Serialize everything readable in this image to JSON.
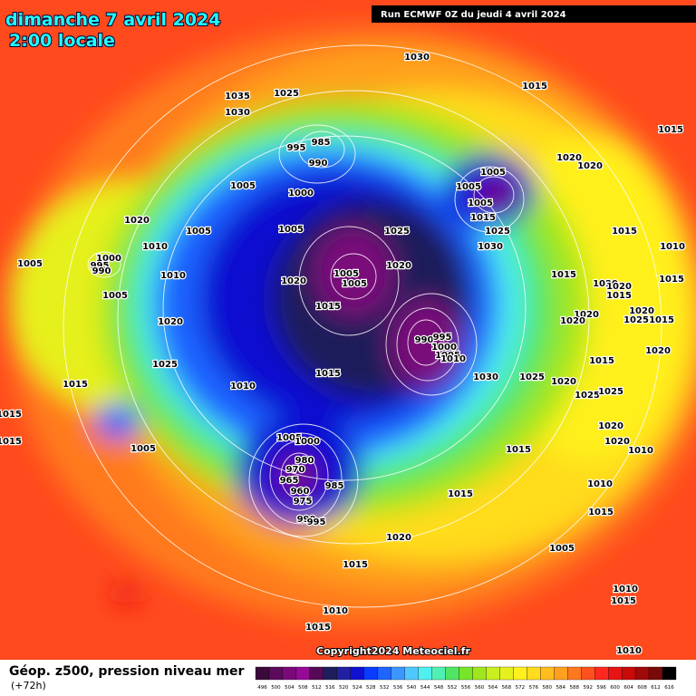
{
  "header": {
    "date": "dimanche 7 avril 2024",
    "time": "2:00 locale",
    "run": "Run ECMWF 0Z du jeudi 4 avril 2024"
  },
  "map": {
    "pressure_labels": [
      1030,
      1035,
      1025,
      1030,
      1015,
      1015,
      985,
      995,
      990,
      1005,
      1000,
      1020,
      1020,
      1005,
      1005,
      1005,
      1015,
      1025,
      1030,
      1020,
      1005,
      1005,
      1025,
      1010,
      1015,
      1010,
      1000,
      995,
      990,
      1005,
      1020,
      1005,
      1005,
      1010,
      1015,
      1020,
      1020,
      1020,
      1015,
      1015,
      1005,
      1015,
      1020,
      1020,
      1025,
      1015,
      1020,
      1020,
      990,
      995,
      1000,
      1005,
      1010,
      1020,
      1025,
      1015,
      1015,
      1030,
      1025,
      1020,
      1015,
      1010,
      1025,
      1025,
      1015,
      1015,
      1020,
      1005,
      1000,
      1020,
      1005,
      1015,
      1010,
      980,
      970,
      965,
      960,
      975,
      985,
      1010,
      1015,
      990,
      995,
      1015,
      1020,
      1005,
      1015,
      1010,
      1015,
      1010,
      1015,
      1010
    ],
    "copyright": "Copyright2024 Meteociel.fr"
  },
  "footer": {
    "title": "Géop. z500, pression niveau mer",
    "lead": "(+72h)",
    "legend": {
      "values": [
        496,
        500,
        504,
        508,
        512,
        516,
        520,
        524,
        528,
        532,
        536,
        540,
        544,
        548,
        552,
        556,
        560,
        564,
        568,
        572,
        576,
        580,
        584,
        588,
        592,
        596,
        600,
        604,
        608,
        612,
        616
      ],
      "colors": [
        "#3b0a3b",
        "#5c0a5c",
        "#7a0a7a",
        "#960a96",
        "#550a55",
        "#1e1e5a",
        "#2020a0",
        "#1010d0",
        "#0a3cff",
        "#1e64ff",
        "#3c96ff",
        "#50c8ff",
        "#50f0f0",
        "#50f0b4",
        "#50e664",
        "#78e628",
        "#a0e61e",
        "#c8f01e",
        "#e6f01e",
        "#fff01e",
        "#ffdc1e",
        "#ffbe1e",
        "#ffa01e",
        "#ff781e",
        "#ff501e",
        "#ff281e",
        "#e61414",
        "#c80a0a",
        "#a00a0a",
        "#780a0a",
        "#000000"
      ]
    }
  }
}
